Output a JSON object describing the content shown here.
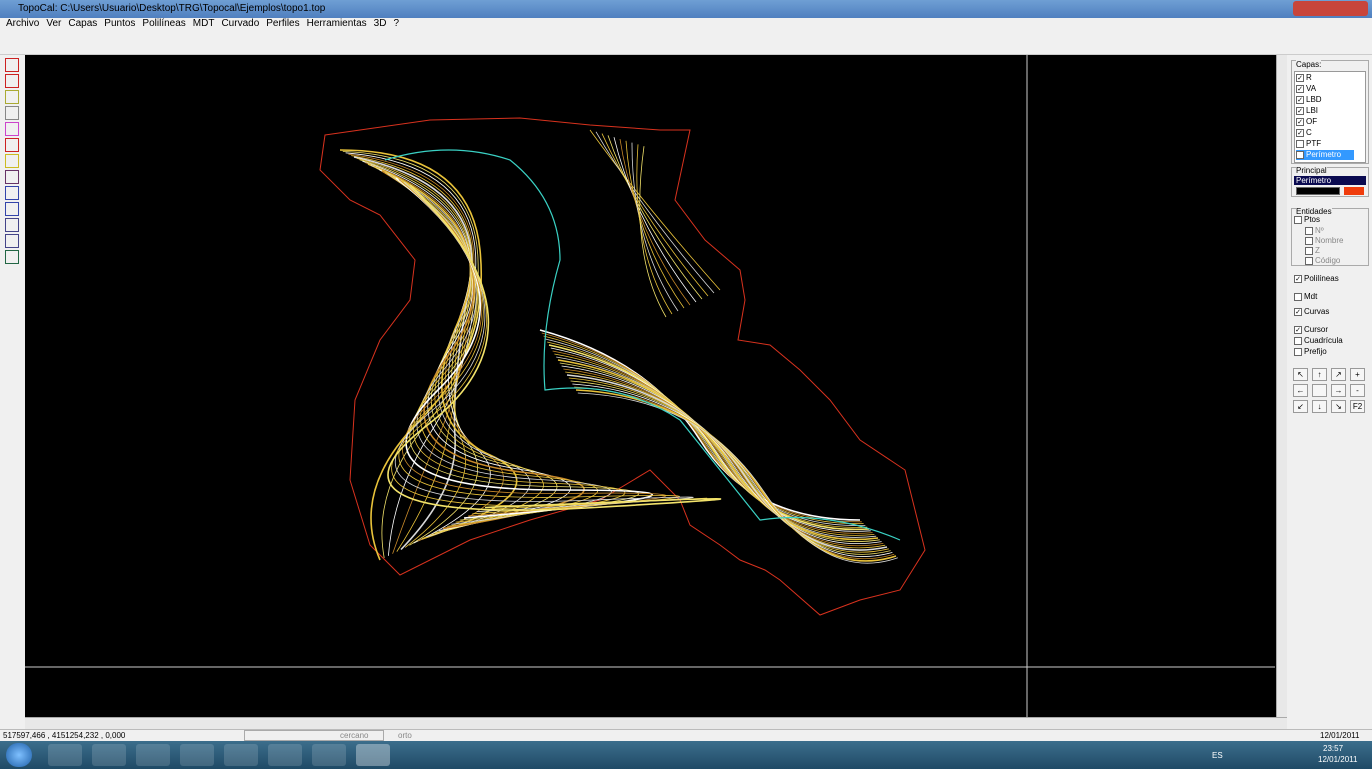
{
  "window": {
    "title": "TopoCal: C:\\Users\\Usuario\\Desktop\\TRG\\Topocal\\Ejemplos\\topo1.top"
  },
  "menu": [
    "Archivo",
    "Ver",
    "Capas",
    "Puntos",
    "Polilíneas",
    "MDT",
    "Curvado",
    "Perfiles",
    "Herramientas",
    "3D",
    "?"
  ],
  "layers_panel": {
    "label": "Capas:",
    "layers": [
      {
        "name": "R",
        "checked": true
      },
      {
        "name": "VA",
        "checked": true
      },
      {
        "name": "LBD",
        "checked": true
      },
      {
        "name": "LBI",
        "checked": true
      },
      {
        "name": "OF",
        "checked": true
      },
      {
        "name": "C",
        "checked": true
      },
      {
        "name": "PTF",
        "checked": false
      },
      {
        "name": "Perímetro",
        "checked": true
      }
    ],
    "principal_label": "Principal",
    "principal_layer": "Perímetro"
  },
  "entities_panel": {
    "label": "Entidades",
    "points": {
      "label": "Ptos",
      "checked": false
    },
    "point_options": [
      {
        "label": "Nº",
        "checked": false
      },
      {
        "label": "Nombre",
        "checked": false
      },
      {
        "label": "Z",
        "checked": false
      },
      {
        "label": "Código",
        "checked": false
      }
    ],
    "polylines": {
      "label": "Polilíneas",
      "checked": true
    },
    "mdt": {
      "label": "Mdt",
      "checked": false
    },
    "contours": {
      "label": "Curvas",
      "checked": true
    },
    "cursor": {
      "label": "Cursor",
      "checked": true
    },
    "grid": {
      "label": "Cuadrícula",
      "checked": false
    },
    "prefix": {
      "label": "Prefijo",
      "checked": false
    }
  },
  "nav_buttons": [
    "↖",
    "↑",
    "↗",
    "+",
    "←",
    "→",
    "-",
    "↙",
    "↓",
    "↘",
    "F2"
  ],
  "status_bar": {
    "coordinates": "517597,466 , 4151254,232 , 0,000",
    "snap": "cercano",
    "ortho": "orto",
    "date": "12/01/2011"
  },
  "taskbar": {
    "language": "ES",
    "time": "23:57",
    "date": "12/01/2011"
  }
}
